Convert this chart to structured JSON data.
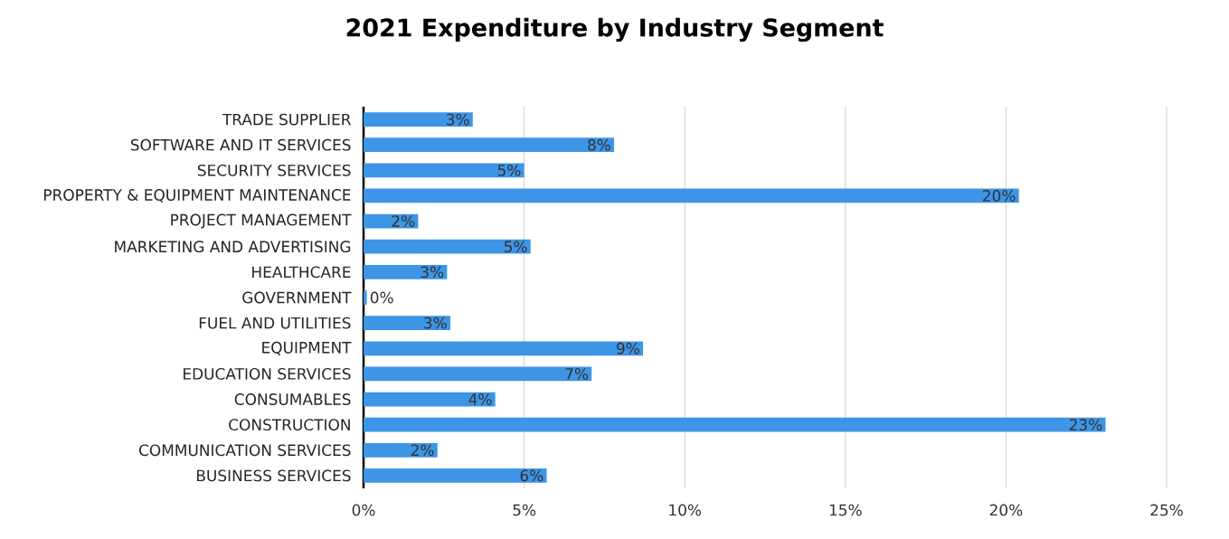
{
  "chart_data": {
    "type": "bar",
    "orientation": "horizontal",
    "title": "2021 Expenditure by Industry Segment",
    "categories": [
      "TRADE SUPPLIER",
      "SOFTWARE AND IT SERVICES",
      "SECURITY SERVICES",
      "PROPERTY & EQUIPMENT MAINTENANCE",
      "PROJECT MANAGEMENT",
      "MARKETING AND ADVERTISING",
      "HEALTHCARE",
      "GOVERNMENT",
      "FUEL AND UTILITIES",
      "EQUIPMENT",
      "EDUCATION SERVICES",
      "CONSUMABLES",
      "CONSTRUCTION",
      "COMMUNICATION SERVICES",
      "BUSINESS SERVICES"
    ],
    "values": [
      3.4,
      7.8,
      5.0,
      20.4,
      1.7,
      5.2,
      2.6,
      0.1,
      2.7,
      8.7,
      7.1,
      4.1,
      23.1,
      2.3,
      5.7
    ],
    "value_labels": [
      "3%",
      "8%",
      "5%",
      "20%",
      "2%",
      "5%",
      "3%",
      "0%",
      "3%",
      "9%",
      "7%",
      "4%",
      "23%",
      "2%",
      "6%"
    ],
    "color": "#3d95e6",
    "xlim": [
      0,
      25
    ],
    "xticks": [
      {
        "value": 0,
        "label": "0%"
      },
      {
        "value": 5,
        "label": "5%"
      },
      {
        "value": 10,
        "label": "10%"
      },
      {
        "value": 15,
        "label": "15%"
      },
      {
        "value": 20,
        "label": "20%"
      },
      {
        "value": 25,
        "label": "25%"
      }
    ],
    "grid": "x"
  }
}
